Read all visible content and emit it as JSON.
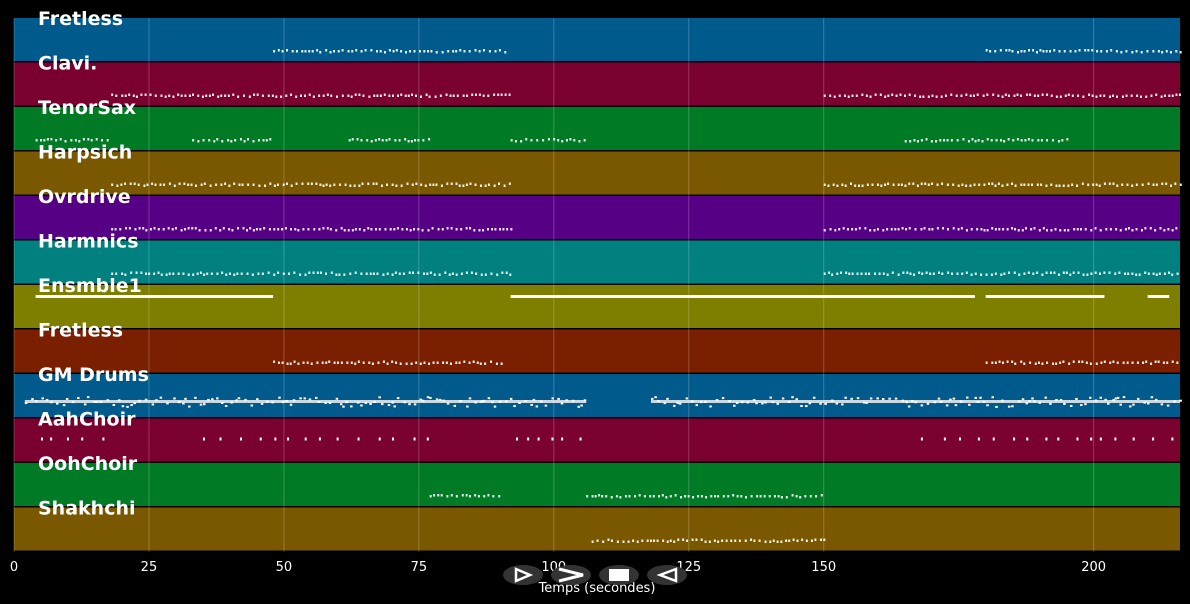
{
  "chart_data": {
    "type": "piano-roll",
    "xlabel": "Temps (secondes)",
    "xlim": [
      0,
      216
    ],
    "xticks": [
      0,
      25,
      50,
      75,
      100,
      125,
      150,
      200
    ],
    "grid": true,
    "tracks": [
      {
        "name": "Fretless",
        "color": "#005a8c",
        "segments": [
          [
            48,
            91
          ],
          [
            180,
            216
          ]
        ],
        "style": "dots"
      },
      {
        "name": "Clavi.",
        "color": "#7a0030",
        "segments": [
          [
            18,
            92
          ],
          [
            150,
            216
          ]
        ],
        "style": "dots"
      },
      {
        "name": "TenorSax",
        "color": "#007a25",
        "segments": [
          [
            4,
            18
          ],
          [
            33,
            48
          ],
          [
            62,
            77
          ],
          [
            92,
            106
          ],
          [
            165,
            195
          ]
        ],
        "style": "dots"
      },
      {
        "name": "Harpsich",
        "color": "#7a5800",
        "segments": [
          [
            18,
            92
          ],
          [
            150,
            216
          ]
        ],
        "style": "dots"
      },
      {
        "name": "Ovrdrive",
        "color": "#560085",
        "segments": [
          [
            18,
            92
          ],
          [
            150,
            216
          ]
        ],
        "style": "dots"
      },
      {
        "name": "Harmnics",
        "color": "#00807e",
        "segments": [
          [
            18,
            92
          ],
          [
            150,
            216
          ]
        ],
        "style": "dots"
      },
      {
        "name": "Ensmble1",
        "color": "#7e7e00",
        "segments": [
          [
            4,
            48
          ],
          [
            92,
            178
          ],
          [
            180,
            202
          ],
          [
            210,
            214
          ]
        ],
        "style": "solid"
      },
      {
        "name": "Fretless",
        "color": "#7a2000",
        "segments": [
          [
            48,
            91
          ],
          [
            180,
            216
          ]
        ],
        "style": "dots"
      },
      {
        "name": "GM Drums",
        "color": "#005a8c",
        "segments": [
          [
            2,
            106
          ],
          [
            118,
            216
          ]
        ],
        "style": "dense"
      },
      {
        "name": "AahChoir",
        "color": "#7a0030",
        "segments": [
          [
            5,
            19
          ],
          [
            35,
            77
          ],
          [
            93,
            107
          ],
          [
            168,
            216
          ]
        ],
        "style": "sparse"
      },
      {
        "name": "OohChoir",
        "color": "#007a25",
        "segments": [
          [
            77,
            90
          ],
          [
            106,
            150
          ]
        ],
        "style": "dots"
      },
      {
        "name": "Shakhchi",
        "color": "#7a5800",
        "segments": [
          [
            107,
            150
          ]
        ],
        "style": "dots"
      }
    ]
  },
  "controls": {
    "play_icon": "play-icon",
    "fast_forward_icon": "fast-forward-icon",
    "stop_icon": "stop-icon",
    "rewind_icon": "rewind-icon"
  }
}
